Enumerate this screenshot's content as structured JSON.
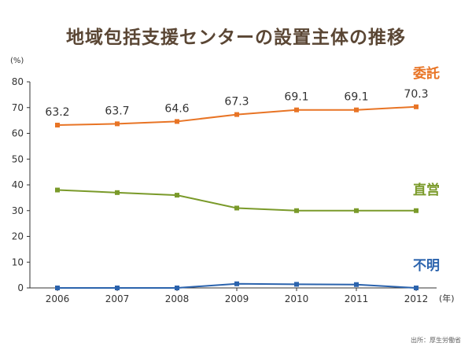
{
  "chart_data": {
    "type": "line",
    "title": "地域包括支援センターの設置主体の推移",
    "y_unit": "(%)",
    "x_unit": "(年)",
    "source": "出所：厚生労働省",
    "categories": [
      "2006",
      "2007",
      "2008",
      "2009",
      "2010",
      "2011",
      "2012"
    ],
    "ylim": [
      0,
      80
    ],
    "yticks": [
      0,
      10,
      20,
      30,
      40,
      50,
      60,
      70,
      80
    ],
    "grid": false,
    "series": [
      {
        "name": "委託",
        "color": "#e87425",
        "values": [
          63.2,
          63.7,
          64.6,
          67.3,
          69.1,
          69.1,
          70.3
        ],
        "data_labels": [
          "63.2",
          "63.7",
          "64.6",
          "67.3",
          "69.1",
          "69.1",
          "70.3"
        ]
      },
      {
        "name": "直営",
        "color": "#7a9a2a",
        "values": [
          38,
          37,
          36,
          31,
          30,
          30,
          30
        ]
      },
      {
        "name": "不明",
        "color": "#2b63ad",
        "values": [
          0,
          0,
          0,
          1.6,
          1.4,
          1.3,
          0
        ]
      }
    ]
  }
}
